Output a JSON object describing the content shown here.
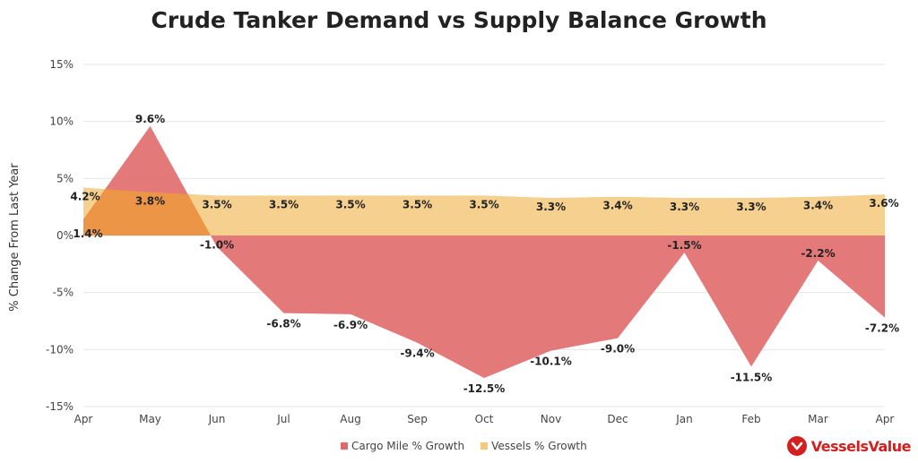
{
  "title": "Crude Tanker Demand vs Supply Balance Growth",
  "logo_text": "VesselsValue",
  "colors": {
    "cargo": "#e06a6a",
    "vessels": "#f5c87a",
    "overlap": "#ed9547",
    "brand": "#d41f1f"
  },
  "chart_data": {
    "type": "area",
    "title": "Crude Tanker Demand vs Supply Balance Growth",
    "ylabel": "% Change From Last Year",
    "xlabel": "",
    "categories": [
      "Apr",
      "May",
      "Jun",
      "Jul",
      "Aug",
      "Sep",
      "Oct",
      "Nov",
      "Dec",
      "Jan",
      "Feb",
      "Mar",
      "Apr"
    ],
    "ylim": [
      -15,
      15
    ],
    "yticks": [
      "15%",
      "10%",
      "5%",
      "0%",
      "-5%",
      "-10%",
      "-15%"
    ],
    "series": [
      {
        "name": "Cargo Mile % Growth",
        "values": [
          1.4,
          9.6,
          -1.0,
          -6.8,
          -6.9,
          -9.4,
          -12.5,
          -10.1,
          -9.0,
          -1.5,
          -11.5,
          -2.2,
          -7.2
        ],
        "labels": [
          "1.4%",
          "9.6%",
          "-1.0%",
          "-6.8%",
          "-6.9%",
          "-9.4%",
          "-12.5%",
          "-10.1%",
          "-9.0%",
          "-1.5%",
          "-11.5%",
          "-2.2%",
          "-7.2%"
        ]
      },
      {
        "name": "Vessels % Growth",
        "values": [
          4.2,
          3.8,
          3.5,
          3.5,
          3.5,
          3.5,
          3.5,
          3.3,
          3.4,
          3.3,
          3.3,
          3.4,
          3.6
        ],
        "labels": [
          "4.2%",
          "3.8%",
          "3.5%",
          "3.5%",
          "3.5%",
          "3.5%",
          "3.5%",
          "3.3%",
          "3.4%",
          "3.3%",
          "3.3%",
          "3.4%",
          "3.6%"
        ]
      }
    ],
    "grid": true,
    "legend_position": "bottom-center"
  }
}
